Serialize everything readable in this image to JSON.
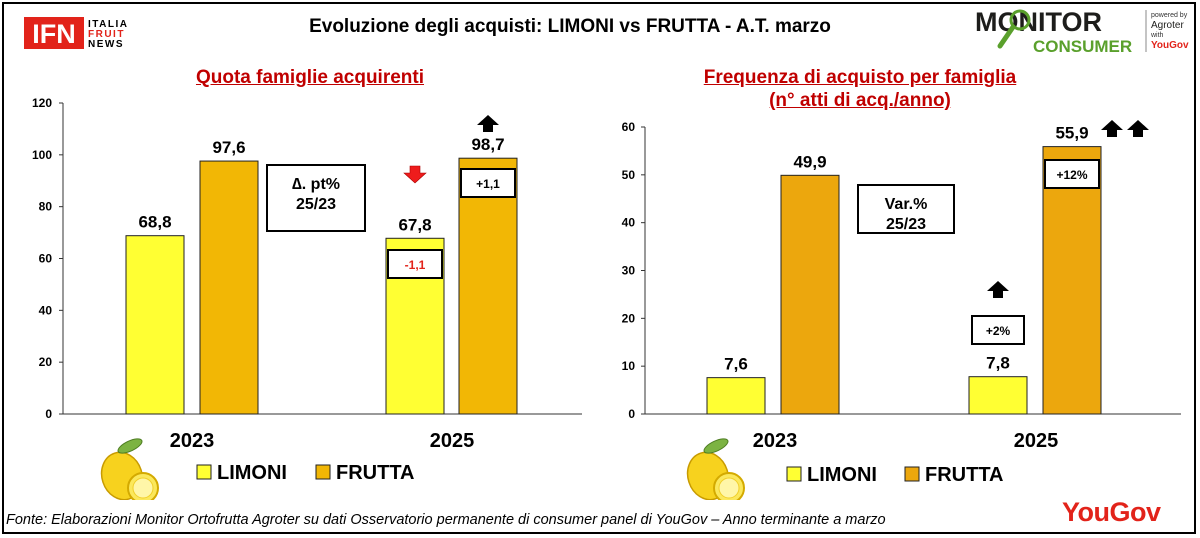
{
  "header": {
    "title": "Evoluzione degli acquisti: LIMONI vs FRUTTA  - A.T. marzo",
    "logo_left": {
      "mark": "IFN",
      "line1": "ITALIA",
      "line2": "FRUIT",
      "line3": "NEWS"
    },
    "logo_right": {
      "line1": "MONITOR",
      "line2": "CONSUMER",
      "small1": "powered by",
      "small2": "Agroter",
      "small3": "with",
      "small4": "YouGov"
    }
  },
  "footer": {
    "source": "Fonte: Elaborazioni Monitor Ortofrutta Agroter su dati Osservatorio permanente di consumer panel di YouGov  – Anno terminante a marzo",
    "brand": "YouGov"
  },
  "colors": {
    "limoni": "#ffff33",
    "frutta": "#f2b705",
    "frutta_right": "#eca70d",
    "title_red": "#c00000",
    "arrow_down": "#ee1c1c",
    "arrow_up": "#000000"
  },
  "icons": {
    "lemon": "lemon-icon",
    "up": "arrow-up-icon",
    "down": "arrow-down-icon"
  },
  "chart_data": [
    {
      "type": "bar",
      "title": "Quota famiglie acquirenti",
      "categories": [
        "2023",
        "2025"
      ],
      "series": [
        {
          "name": "LIMONI",
          "values": [
            68.8,
            67.8
          ]
        },
        {
          "name": "FRUTTA",
          "values": [
            97.6,
            98.7
          ]
        }
      ],
      "value_labels": [
        [
          "68,8",
          "67,8"
        ],
        [
          "97,6",
          "98,7"
        ]
      ],
      "ylim": [
        0,
        120
      ],
      "yticks": [
        0,
        20,
        40,
        60,
        80,
        100,
        120
      ],
      "grid": false,
      "legend": "bottom",
      "annotation_box": {
        "line1": "∆. pt%",
        "line2": "25/23"
      },
      "changes": [
        {
          "series": "LIMONI",
          "category": "2025",
          "label": "-1,1",
          "direction": "down",
          "arrows": 1
        },
        {
          "series": "FRUTTA",
          "category": "2025",
          "label": "+1,1",
          "direction": "up",
          "arrows": 1
        }
      ]
    },
    {
      "type": "bar",
      "title": "Frequenza di acquisto per famiglia",
      "subtitle": "(n° atti di acq./anno)",
      "categories": [
        "2023",
        "2025"
      ],
      "series": [
        {
          "name": "LIMONI",
          "values": [
            7.6,
            7.8
          ]
        },
        {
          "name": "FRUTTA",
          "values": [
            49.9,
            55.9
          ]
        }
      ],
      "value_labels": [
        [
          "7,6",
          "7,8"
        ],
        [
          "49,9",
          "55,9"
        ]
      ],
      "ylim": [
        0,
        60
      ],
      "yticks": [
        0,
        10,
        20,
        30,
        40,
        50,
        60
      ],
      "grid": false,
      "legend": "bottom",
      "annotation_box": {
        "line1": "Var.%",
        "line2": "25/23"
      },
      "changes": [
        {
          "series": "LIMONI",
          "category": "2025",
          "label": "+2%",
          "direction": "up",
          "arrows": 1
        },
        {
          "series": "FRUTTA",
          "category": "2025",
          "label": "+12%",
          "direction": "up",
          "arrows": 2
        }
      ]
    }
  ]
}
